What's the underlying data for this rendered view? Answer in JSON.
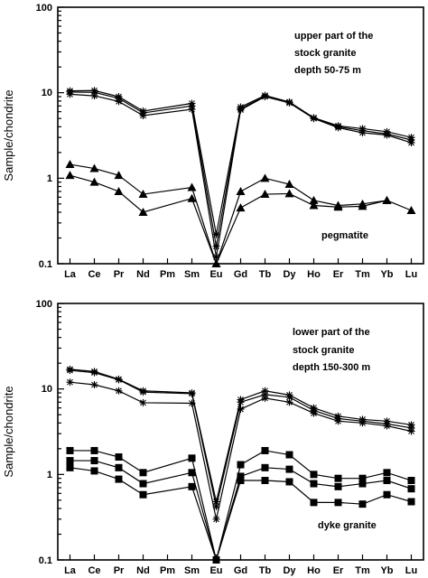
{
  "chart_data": [
    {
      "type": "line",
      "ylabel": "Sample/chondrite",
      "yscale": "log",
      "ylim": [
        0.1,
        100
      ],
      "yticks": [
        "0.1",
        "1",
        "10",
        "100"
      ],
      "categories": [
        "La",
        "Ce",
        "Pr",
        "Nd",
        "Pm",
        "Sm",
        "Eu",
        "Gd",
        "Tb",
        "Dy",
        "Ho",
        "Er",
        "Tm",
        "Yb",
        "Lu"
      ],
      "annotations": [
        "upper part of the",
        "stock granite",
        "depth 50-75 m",
        "pegmatite"
      ],
      "grid": false,
      "series": [
        {
          "marker": "star",
          "values": [
            10.5,
            10.6,
            9.0,
            6.1,
            null,
            7.5,
            0.22,
            6.8,
            9.3,
            7.8,
            5.1,
            4.1,
            3.8,
            3.5,
            3.0
          ]
        },
        {
          "marker": "star",
          "values": [
            10.2,
            10.1,
            8.6,
            5.8,
            null,
            7.0,
            0.16,
            6.5,
            9.1,
            7.7,
            5.0,
            4.0,
            3.6,
            3.3,
            2.8
          ]
        },
        {
          "marker": "star",
          "values": [
            9.6,
            9.2,
            7.9,
            5.4,
            null,
            6.4,
            0.12,
            6.3,
            9.0,
            7.6,
            5.0,
            3.9,
            3.4,
            3.2,
            2.6
          ]
        },
        {
          "marker": "triangle",
          "values": [
            1.45,
            1.3,
            1.08,
            0.65,
            null,
            0.78,
            0.1,
            0.7,
            1.0,
            0.85,
            0.55,
            0.48,
            0.5,
            0.55,
            null
          ]
        },
        {
          "marker": "triangle",
          "values": [
            1.08,
            0.9,
            0.7,
            0.4,
            null,
            0.58,
            0.1,
            0.45,
            0.65,
            0.66,
            0.48,
            0.46,
            0.47,
            0.55,
            0.42
          ]
        }
      ]
    },
    {
      "type": "line",
      "ylabel": "Sample/chondrite",
      "yscale": "log",
      "ylim": [
        0.1,
        100
      ],
      "yticks": [
        "0.1",
        "1",
        "10",
        "100"
      ],
      "categories": [
        "La",
        "Ce",
        "Pr",
        "Nd",
        "Pm",
        "Sm",
        "Eu",
        "Gd",
        "Tb",
        "Dy",
        "Ho",
        "Er",
        "Tm",
        "Yb",
        "Lu"
      ],
      "annotations": [
        "lower part of the",
        "stock granite",
        "depth 150-300 m",
        "dyke granite"
      ],
      "grid": false,
      "series": [
        {
          "marker": "star",
          "values": [
            17.0,
            16.0,
            13.0,
            9.5,
            null,
            9.0,
            0.48,
            7.5,
            9.5,
            8.5,
            6.0,
            4.8,
            4.4,
            4.2,
            3.8
          ]
        },
        {
          "marker": "star",
          "values": [
            16.5,
            15.5,
            12.8,
            9.2,
            null,
            8.8,
            0.42,
            7.0,
            8.6,
            8.0,
            5.6,
            4.5,
            4.2,
            3.9,
            3.5
          ]
        },
        {
          "marker": "star",
          "values": [
            12.0,
            11.2,
            9.5,
            6.9,
            null,
            6.8,
            0.3,
            5.8,
            7.8,
            7.0,
            5.2,
            4.2,
            4.0,
            3.7,
            3.2
          ]
        },
        {
          "marker": "square",
          "values": [
            1.9,
            1.9,
            1.6,
            1.05,
            null,
            1.55,
            0.1,
            1.3,
            1.9,
            1.7,
            1.0,
            0.9,
            0.9,
            1.05,
            0.85
          ]
        },
        {
          "marker": "square",
          "values": [
            1.45,
            1.45,
            1.2,
            0.78,
            null,
            1.05,
            0.1,
            0.95,
            1.2,
            1.15,
            0.78,
            0.72,
            0.78,
            0.85,
            0.68
          ]
        },
        {
          "marker": "square",
          "values": [
            1.2,
            1.1,
            0.88,
            0.58,
            null,
            0.72,
            0.1,
            0.85,
            0.85,
            0.82,
            0.47,
            0.47,
            0.45,
            0.58,
            0.48
          ]
        }
      ]
    }
  ]
}
